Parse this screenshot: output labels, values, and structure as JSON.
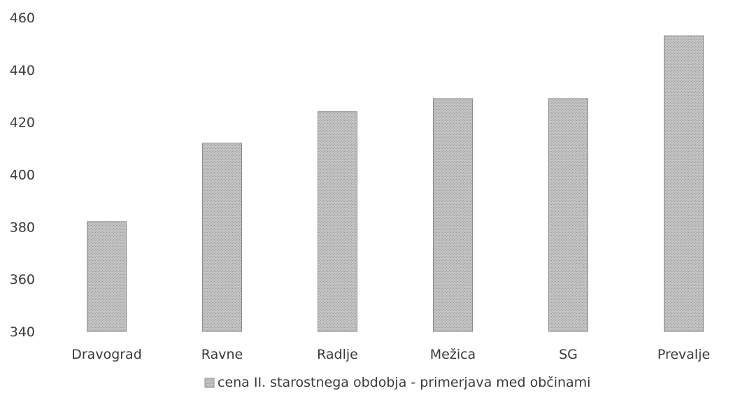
{
  "chart_data": {
    "type": "bar",
    "categories": [
      "Dravograd",
      "Ravne",
      "Radlje",
      "Mežica",
      "SG",
      "Prevalje"
    ],
    "series": [
      {
        "name": "cena II. starostnega obdobja - primerjava med občinami",
        "values": [
          382,
          412,
          424,
          429,
          429,
          453
        ]
      }
    ],
    "ylim": [
      340,
      460
    ],
    "yticks": [
      340,
      360,
      380,
      400,
      420,
      440,
      460
    ],
    "grid": false,
    "legend_position": "bottom",
    "bar_color": "#bdbdbd",
    "bar_edge_color": "#8c8c8c"
  }
}
